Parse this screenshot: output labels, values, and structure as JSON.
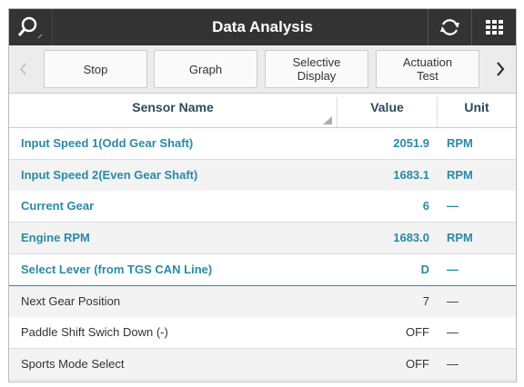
{
  "header": {
    "title": "Data Analysis"
  },
  "toolbar": {
    "buttons": [
      "Stop",
      "Graph",
      "Selective Display",
      "Actuation Test"
    ]
  },
  "table": {
    "columns": [
      "Sensor Name",
      "Value",
      "Unit"
    ],
    "rows": [
      [
        "Input Speed 1(Odd Gear Shaft)",
        "2051.9",
        "RPM"
      ],
      [
        "Input Speed 2(Even Gear Shaft)",
        "1683.1",
        "RPM"
      ],
      [
        "Current Gear",
        "6",
        "—"
      ],
      [
        "Engine RPM",
        "1683.0",
        "RPM"
      ],
      [
        "Select Lever (from TGS CAN Line)",
        "D",
        "—"
      ],
      [
        "Next Gear Position",
        "7",
        "—"
      ],
      [
        "Paddle Shift Swich Down (-)",
        "OFF",
        "—"
      ],
      [
        "Sports Mode Select",
        "OFF",
        "—"
      ]
    ],
    "highlighted_rows": 5
  }
}
